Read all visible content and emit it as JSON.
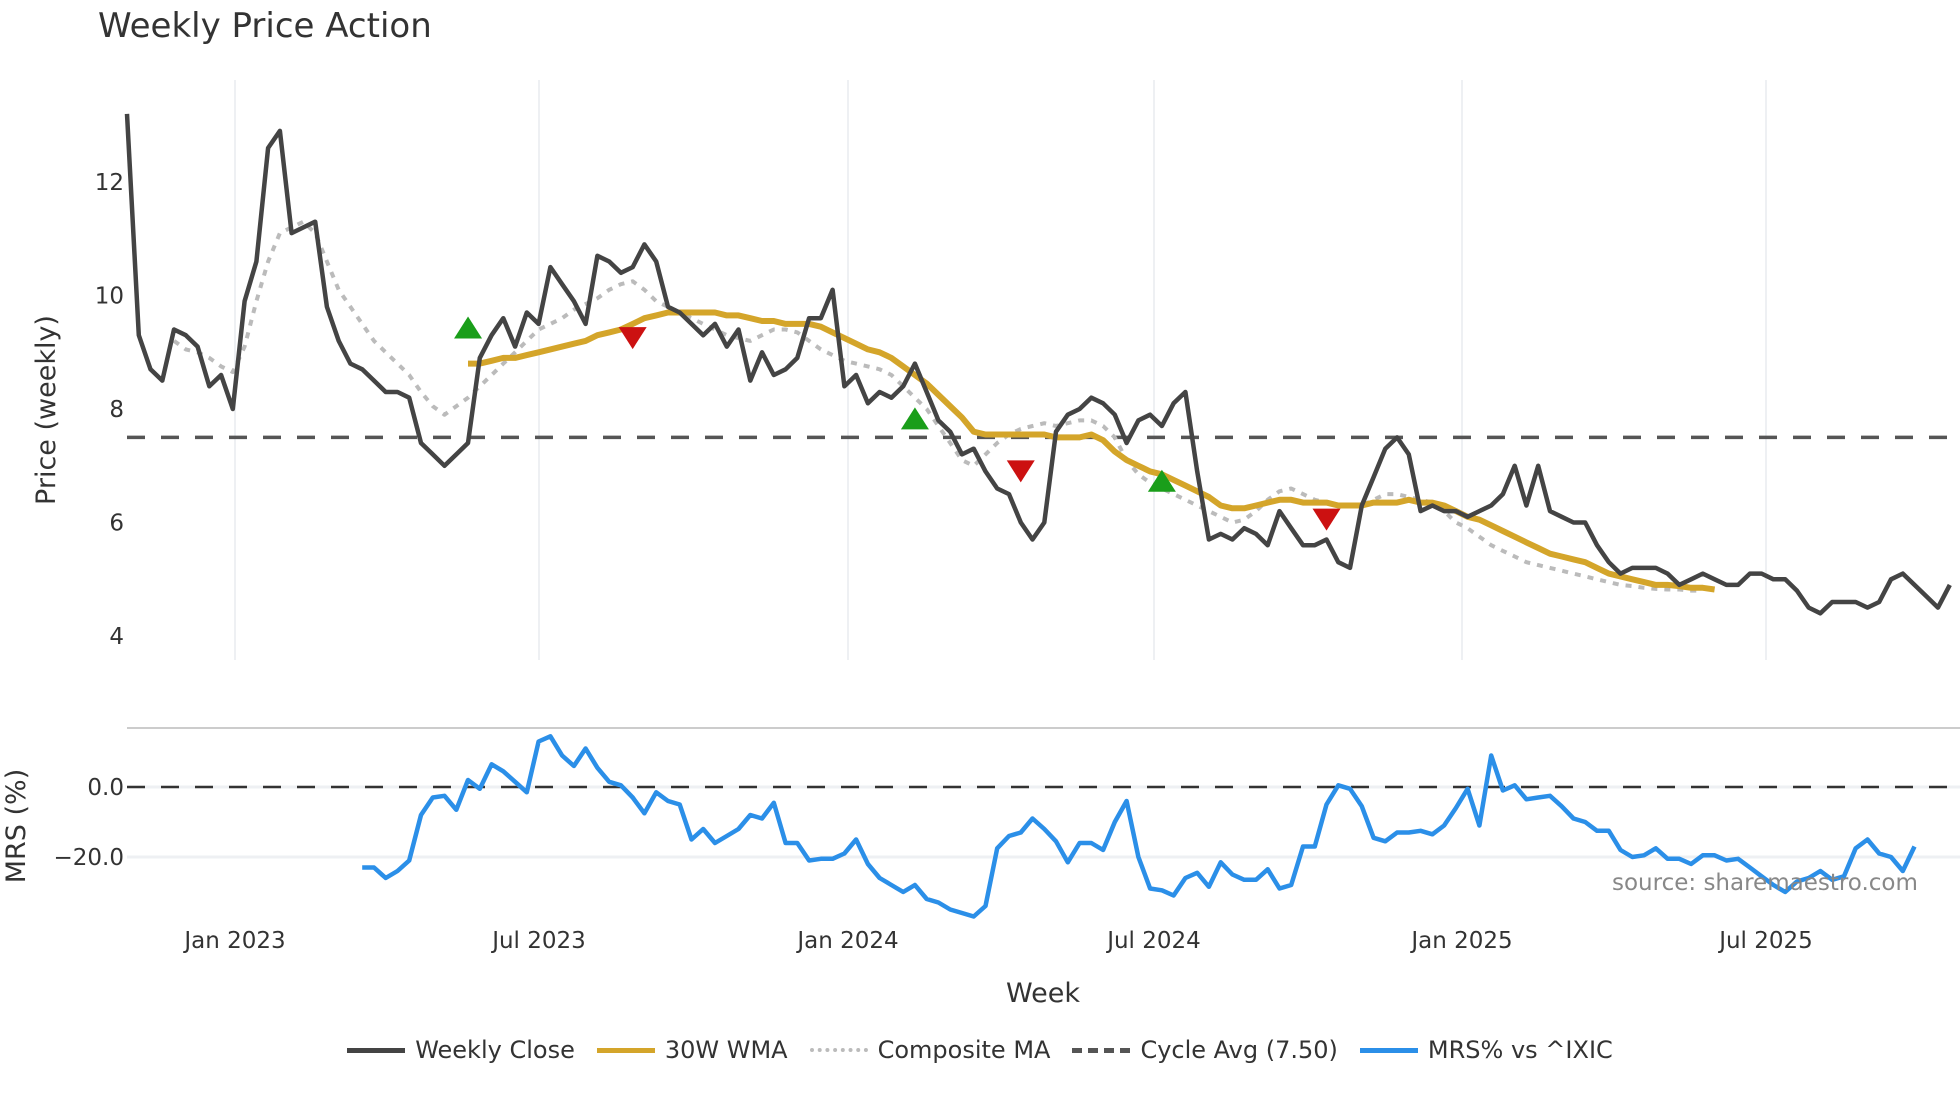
{
  "title": "Weekly Price Action",
  "legend": [
    {
      "label": "Weekly Close",
      "color": "#444444",
      "style": "solid"
    },
    {
      "label": "30W WMA",
      "color": "#D4A52A",
      "style": "solid"
    },
    {
      "label": "Composite MA",
      "color": "#BBBBBB",
      "style": "dotted"
    },
    {
      "label": "Cycle Avg (7.50)",
      "color": "#555555",
      "style": "dashed"
    },
    {
      "label": "MRS% vs ^IXIC",
      "color": "#2B8FE8",
      "style": "solid"
    }
  ],
  "source_text": "source: sharemaestro.com",
  "chart_data": [
    {
      "type": "line",
      "title": "Weekly Price Action",
      "xlabel": "Week",
      "ylabel": "Price (weekly)",
      "ylim": [
        4,
        13.2
      ],
      "yticks": [
        4,
        6,
        8,
        10,
        12
      ],
      "xticks": [
        "Jan 2023",
        "Jul 2023",
        "Jan 2024",
        "Jul 2024",
        "Jan 2025",
        "Jul 2025"
      ],
      "grid": "vertical",
      "reference_lines": [
        {
          "name": "Cycle Avg",
          "value": 7.5,
          "style": "dashed"
        }
      ],
      "series": [
        {
          "name": "Weekly Close",
          "start_week": 0,
          "values": [
            13.2,
            9.3,
            8.7,
            8.5,
            9.4,
            9.3,
            9.1,
            8.4,
            8.6,
            8.0,
            9.9,
            10.6,
            12.6,
            12.9,
            11.1,
            11.2,
            11.3,
            9.8,
            9.2,
            8.8,
            8.7,
            8.5,
            8.3,
            8.3,
            8.2,
            7.4,
            7.2,
            7.0,
            7.2,
            7.4,
            8.9,
            9.3,
            9.6,
            9.1,
            9.7,
            9.5,
            10.5,
            10.2,
            9.9,
            9.5,
            10.7,
            10.6,
            10.4,
            10.5,
            10.9,
            10.6,
            9.8,
            9.7,
            9.5,
            9.3,
            9.5,
            9.1,
            9.4,
            8.5,
            9.0,
            8.6,
            8.7,
            8.9,
            9.6,
            9.6,
            10.1,
            8.4,
            8.6,
            8.1,
            8.3,
            8.2,
            8.4,
            8.8,
            8.3,
            7.8,
            7.6,
            7.2,
            7.3,
            6.9,
            6.6,
            6.5,
            6.0,
            5.7,
            6.0,
            7.6,
            7.9,
            8.0,
            8.2,
            8.1,
            7.9,
            7.4,
            7.8,
            7.9,
            7.7,
            8.1,
            8.3,
            6.9,
            5.7,
            5.8,
            5.7,
            5.9,
            5.8,
            5.6,
            6.2,
            5.9,
            5.6,
            5.6,
            5.7,
            5.3,
            5.2,
            6.3,
            6.8,
            7.3,
            7.5,
            7.2,
            6.2,
            6.3,
            6.2,
            6.2,
            6.1,
            6.2,
            6.3,
            6.5,
            7.0,
            6.3,
            7.0,
            6.2,
            6.1,
            6.0,
            6.0,
            5.6,
            5.3,
            5.1,
            5.2,
            5.2,
            5.2,
            5.1,
            4.9,
            5.0,
            5.1,
            5.0,
            4.9,
            4.9,
            5.1,
            5.1,
            5.0,
            5.0,
            4.8,
            4.5,
            4.4,
            4.6,
            4.6,
            4.6,
            4.5,
            4.6,
            5.0,
            5.1,
            4.9,
            4.7,
            4.5,
            4.9
          ]
        },
        {
          "name": "30W WMA",
          "start_week": 29,
          "values": [
            8.8,
            8.8,
            8.85,
            8.9,
            8.9,
            8.95,
            9.0,
            9.05,
            9.1,
            9.15,
            9.2,
            9.3,
            9.35,
            9.4,
            9.5,
            9.6,
            9.65,
            9.7,
            9.7,
            9.7,
            9.7,
            9.7,
            9.65,
            9.65,
            9.6,
            9.55,
            9.55,
            9.5,
            9.5,
            9.5,
            9.45,
            9.35,
            9.25,
            9.15,
            9.05,
            9.0,
            8.9,
            8.75,
            8.6,
            8.45,
            8.25,
            8.05,
            7.85,
            7.6,
            7.55,
            7.55,
            7.55,
            7.55,
            7.55,
            7.55,
            7.5,
            7.5,
            7.5,
            7.55,
            7.45,
            7.25,
            7.1,
            7.0,
            6.9,
            6.85,
            6.75,
            6.65,
            6.55,
            6.45,
            6.3,
            6.25,
            6.25,
            6.3,
            6.35,
            6.4,
            6.4,
            6.35,
            6.35,
            6.35,
            6.3,
            6.3,
            6.3,
            6.35,
            6.35,
            6.35,
            6.4,
            6.35,
            6.35,
            6.3,
            6.2,
            6.1,
            6.05,
            5.95,
            5.85,
            5.75,
            5.65,
            5.55,
            5.45,
            5.4,
            5.35,
            5.3,
            5.2,
            5.1,
            5.05,
            5.0,
            4.95,
            4.9,
            4.9,
            4.88,
            4.85,
            4.85,
            4.82
          ]
        },
        {
          "name": "Composite MA",
          "start_week": 4,
          "values": [
            9.2,
            9.05,
            9.0,
            8.9,
            8.75,
            8.65,
            9.1,
            9.9,
            10.6,
            11.1,
            11.2,
            11.3,
            11.1,
            10.6,
            10.1,
            9.8,
            9.5,
            9.2,
            9.0,
            8.8,
            8.6,
            8.3,
            8.05,
            7.9,
            8.05,
            8.2,
            8.4,
            8.6,
            8.8,
            9.0,
            9.2,
            9.4,
            9.5,
            9.6,
            9.75,
            9.85,
            9.95,
            10.1,
            10.2,
            10.25,
            10.1,
            9.9,
            9.8,
            9.7,
            9.6,
            9.5,
            9.4,
            9.3,
            9.25,
            9.2,
            9.3,
            9.4,
            9.4,
            9.35,
            9.2,
            9.05,
            8.95,
            8.85,
            8.8,
            8.75,
            8.7,
            8.6,
            8.4,
            8.2,
            8.0,
            7.7,
            7.4,
            7.1,
            7.0,
            7.2,
            7.4,
            7.55,
            7.65,
            7.7,
            7.75,
            7.7,
            7.75,
            7.8,
            7.8,
            7.7,
            7.5,
            7.1,
            6.85,
            6.7,
            6.6,
            6.5,
            6.4,
            6.3,
            6.2,
            6.1,
            6.0,
            6.05,
            6.2,
            6.4,
            6.55,
            6.6,
            6.5,
            6.4,
            6.35,
            6.3,
            6.3,
            6.3,
            6.4,
            6.5,
            6.5,
            6.45,
            6.4,
            6.35,
            6.2,
            6.0,
            5.9,
            5.75,
            5.6,
            5.5,
            5.4,
            5.3,
            5.25,
            5.2,
            5.15,
            5.1,
            5.05,
            5.0,
            4.95,
            4.9,
            4.88,
            4.85,
            4.83,
            4.82,
            4.82,
            4.8,
            4.8
          ]
        }
      ],
      "signals": [
        {
          "type": "buy",
          "week": 29,
          "price": 9.4
        },
        {
          "type": "sell",
          "week": 43,
          "price": 9.25
        },
        {
          "type": "buy",
          "week": 67,
          "price": 7.8
        },
        {
          "type": "sell",
          "week": 76,
          "price": 6.9
        },
        {
          "type": "buy",
          "week": 88,
          "price": 6.7
        },
        {
          "type": "sell",
          "week": 102,
          "price": 6.05
        }
      ]
    },
    {
      "type": "line",
      "title": "",
      "xlabel": "Week",
      "ylabel": "MRS (%)",
      "yticks": [
        0.0,
        -20.0
      ],
      "ylim": [
        -37,
        17
      ],
      "reference_lines": [
        {
          "name": "zero",
          "value": 0.0,
          "style": "dashed"
        }
      ],
      "series": [
        {
          "name": "MRS% vs ^IXIC",
          "start_week": 20,
          "values": [
            -23,
            -23,
            -26,
            -24,
            -21,
            -8,
            -3,
            -2.5,
            -6.5,
            2,
            -0.5,
            6.5,
            4.5,
            1.5,
            -1.5,
            13,
            14.5,
            9,
            6,
            11,
            5.5,
            1.5,
            0.5,
            -3,
            -7.5,
            -1.5,
            -4,
            -5,
            -15,
            -12,
            -16,
            -14,
            -12,
            -8,
            -9,
            -4.5,
            -16,
            -16,
            -21,
            -20.5,
            -20.5,
            -19,
            -15,
            -22,
            -26,
            -28,
            -30,
            -28,
            -32,
            -33,
            -35,
            -36,
            -37,
            -34,
            -17.5,
            -14,
            -13,
            -9,
            -12,
            -15.5,
            -21.5,
            -16,
            -16,
            -18,
            -10,
            -4,
            -20,
            -29,
            -29.5,
            -31,
            -26,
            -24.5,
            -28.5,
            -21.5,
            -25,
            -26.5,
            -26.5,
            -23.5,
            -29,
            -28,
            -17,
            -17,
            -5,
            0.5,
            -0.5,
            -5.5,
            -14.5,
            -15.5,
            -13,
            -13,
            -12.5,
            -13.5,
            -11,
            -6,
            -0.5,
            -11,
            9,
            -1,
            0.5,
            -3.5,
            -3,
            -2.5,
            -5.5,
            -9,
            -10,
            -12.5,
            -12.5,
            -18,
            -20,
            -19.5,
            -17.5,
            -20.5,
            -20.5,
            -22,
            -19.5,
            -19.5,
            -21,
            -20.5,
            -23,
            -25.5,
            -28,
            -30,
            -27,
            -26,
            -24,
            -26.5,
            -25.5,
            -17.5,
            -15,
            -19,
            -20,
            -24,
            -17
          ]
        }
      ]
    }
  ]
}
